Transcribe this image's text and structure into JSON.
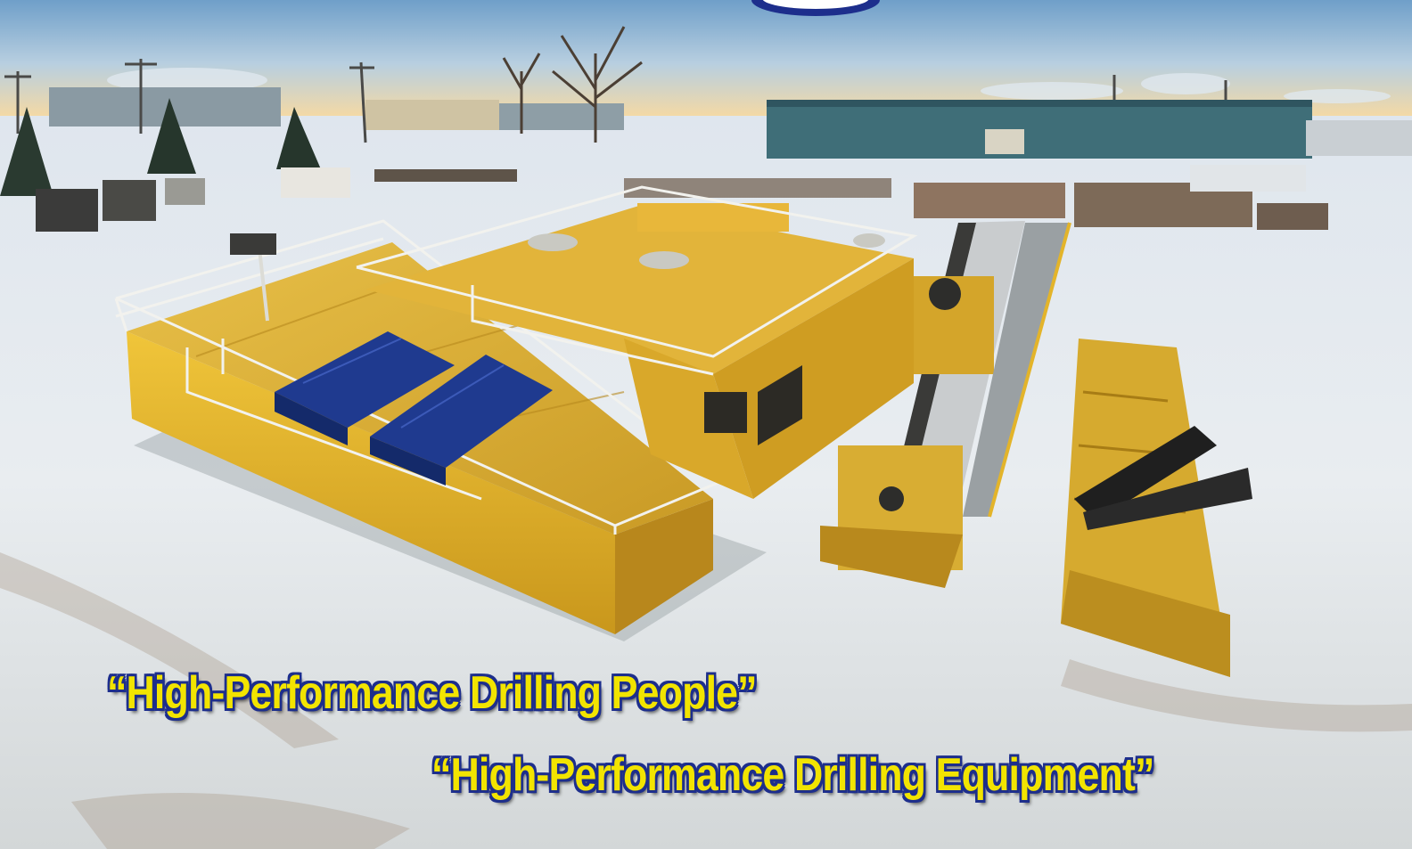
{
  "taglines": {
    "people": "“High-Performance Drilling People”",
    "equipment": "“High-Performance Drilling Equipment”"
  },
  "colors": {
    "tagline_text": "#f2e400",
    "tagline_outline": "#1d2e8c",
    "rig_yellow": "#e3b42a",
    "shaker_blue": "#1f3a8f",
    "warehouse_teal": "#3f6e78",
    "snow": "#e8ecef",
    "sky_top": "#6f9fc9",
    "sky_horizon": "#f3d9a6"
  },
  "scene": {
    "subject": "yellow drilling rig modules on snowy industrial yard",
    "elements": [
      "sky",
      "warehouse",
      "trees",
      "power-poles",
      "snow-ground",
      "mud-tank-module",
      "shale-shakers",
      "control-cabin",
      "drill-pipe-ramp",
      "catwalk",
      "trailer-with-crane",
      "logo-badge"
    ]
  }
}
